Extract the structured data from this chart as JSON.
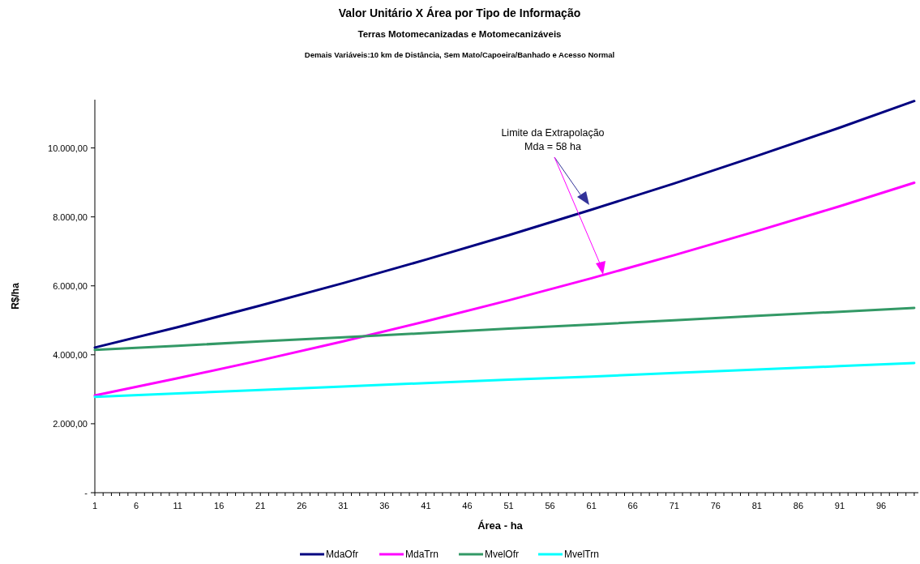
{
  "chart_data": {
    "type": "line",
    "title": "Valor Unitário X Área por Tipo de Informação",
    "subtitle": "Terras Motomecanizadas e Motomecanizáveis",
    "annotations": [
      "Demais Variáveis:10 km de Distância, Sem Mato/Capoeira/Banhado e Acesso Normal",
      "Limite da Extrapolação\nMda = 58 ha"
    ],
    "xlabel": "Área - ha",
    "ylabel": "R$/ha",
    "xlim": [
      1,
      100.5
    ],
    "xticks": [
      1,
      6,
      11,
      16,
      21,
      26,
      31,
      36,
      41,
      46,
      51,
      56,
      61,
      66,
      71,
      76,
      81,
      86,
      91,
      96,
      {
        "value": 2,
        "label": null
      },
      {
        "value": 3,
        "label": null
      },
      {
        "value": 4,
        "label": null
      },
      {
        "value": 5,
        "label": null
      },
      {
        "value": 7,
        "label": null
      },
      {
        "value": 8,
        "label": null
      },
      {
        "value": 9,
        "label": null
      },
      {
        "value": 10,
        "label": null
      },
      {
        "value": 12,
        "label": null
      },
      {
        "value": 13,
        "label": null
      },
      {
        "value": 14,
        "label": null
      },
      {
        "value": 15,
        "label": null
      },
      {
        "value": 17,
        "label": null
      },
      {
        "value": 18,
        "label": null
      },
      {
        "value": 19,
        "label": null
      },
      {
        "value": 20,
        "label": null
      },
      {
        "value": 22,
        "label": null
      },
      {
        "value": 23,
        "label": null
      },
      {
        "value": 24,
        "label": null
      },
      {
        "value": 25,
        "label": null
      },
      {
        "value": 27,
        "label": null
      },
      {
        "value": 28,
        "label": null
      },
      {
        "value": 29,
        "label": null
      },
      {
        "value": 30,
        "label": null
      },
      {
        "value": 32,
        "label": null
      },
      {
        "value": 33,
        "label": null
      },
      {
        "value": 34,
        "label": null
      },
      {
        "value": 35,
        "label": null
      },
      {
        "value": 37,
        "label": null
      },
      {
        "value": 38,
        "label": null
      },
      {
        "value": 39,
        "label": null
      },
      {
        "value": 40,
        "label": null
      },
      {
        "value": 42,
        "label": null
      },
      {
        "value": 43,
        "label": null
      },
      {
        "value": 44,
        "label": null
      },
      {
        "value": 45,
        "label": null
      },
      {
        "value": 47,
        "label": null
      },
      {
        "value": 48,
        "label": null
      },
      {
        "value": 49,
        "label": null
      },
      {
        "value": 50,
        "label": null
      },
      {
        "value": 52,
        "label": null
      },
      {
        "value": 53,
        "label": null
      },
      {
        "value": 54,
        "label": null
      },
      {
        "value": 55,
        "label": null
      },
      {
        "value": 57,
        "label": null
      },
      {
        "value": 58,
        "label": null
      },
      {
        "value": 59,
        "label": null
      },
      {
        "value": 60,
        "label": null
      },
      {
        "value": 62,
        "label": null
      },
      {
        "value": 63,
        "label": null
      },
      {
        "value": 64,
        "label": null
      },
      {
        "value": 65,
        "label": null
      },
      {
        "value": 67,
        "label": null
      },
      {
        "value": 68,
        "label": null
      },
      {
        "value": 69,
        "label": null
      },
      {
        "value": 70,
        "label": null
      },
      {
        "value": 72,
        "label": null
      },
      {
        "value": 73,
        "label": null
      },
      {
        "value": 74,
        "label": null
      },
      {
        "value": 75,
        "label": null
      },
      {
        "value": 77,
        "label": null
      },
      {
        "value": 78,
        "label": null
      },
      {
        "value": 79,
        "label": null
      },
      {
        "value": 80,
        "label": null
      },
      {
        "value": 82,
        "label": null
      },
      {
        "value": 83,
        "label": null
      },
      {
        "value": 84,
        "label": null
      },
      {
        "value": 85,
        "label": null
      },
      {
        "value": 87,
        "label": null
      },
      {
        "value": 88,
        "label": null
      },
      {
        "value": 89,
        "label": null
      },
      {
        "value": 90,
        "label": null
      },
      {
        "value": 92,
        "label": null
      },
      {
        "value": 93,
        "label": null
      },
      {
        "value": 94,
        "label": null
      },
      {
        "value": 95,
        "label": null
      },
      {
        "value": 97,
        "label": null
      },
      {
        "value": 98,
        "label": null
      },
      {
        "value": 99,
        "label": null
      },
      {
        "value": 100,
        "label": null
      }
    ],
    "ylim": [
      0,
      11400
    ],
    "yticks": [
      {
        "value": 0,
        "label": "-"
      },
      {
        "value": 2000,
        "label": "2.000,00"
      },
      {
        "value": 4000,
        "label": "4.000,00"
      },
      {
        "value": 6000,
        "label": "6.000,00"
      },
      {
        "value": 8000,
        "label": "8.000,00"
      },
      {
        "value": 10000,
        "label": "10.000,00"
      }
    ],
    "grid": false,
    "legend": "bottom",
    "marker": "none",
    "line_style": "solid",
    "series": [
      {
        "name": "MdaOfr",
        "color": "#000080",
        "x": [
          1,
          11,
          21,
          31,
          41,
          51,
          61,
          71,
          81,
          91,
          100
        ],
        "values": [
          4210,
          4800,
          5430,
          6080,
          6760,
          7470,
          8210,
          8970,
          9770,
          10590,
          11360
        ]
      },
      {
        "name": "MdaTrn",
        "color": "#ff00ff",
        "x": [
          1,
          11,
          21,
          31,
          41,
          51,
          61,
          71,
          81,
          91,
          100
        ],
        "values": [
          2820,
          3320,
          3840,
          4390,
          4970,
          5580,
          6220,
          6890,
          7590,
          8310,
          8990
        ]
      },
      {
        "name": "MvelOfr",
        "color": "#339966",
        "x": [
          1,
          11,
          21,
          31,
          41,
          51,
          61,
          71,
          81,
          91,
          100
        ],
        "values": [
          4140,
          4260,
          4390,
          4510,
          4630,
          4760,
          4880,
          5000,
          5130,
          5250,
          5360
        ]
      },
      {
        "name": "MvelTrn",
        "color": "#00ffff",
        "x": [
          1,
          11,
          21,
          31,
          41,
          51,
          61,
          71,
          81,
          91,
          100
        ],
        "values": [
          2780,
          2880,
          2980,
          3080,
          3180,
          3280,
          3370,
          3470,
          3570,
          3670,
          3760
        ]
      }
    ]
  }
}
